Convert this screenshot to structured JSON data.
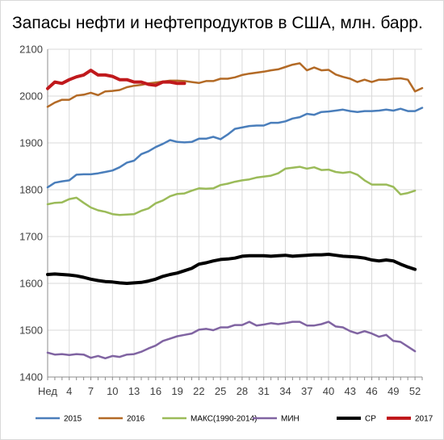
{
  "chart_data": {
    "type": "line",
    "title": "Запасы нефти и нефтепродуктов в США, млн. барр.",
    "xlabel": "",
    "ylabel": "",
    "ylim": [
      1400,
      2100
    ],
    "yticks": [
      1400,
      1500,
      1600,
      1700,
      1800,
      1900,
      2000,
      2100
    ],
    "xlim": [
      1,
      53
    ],
    "xtick_positions": [
      1,
      4,
      7,
      10,
      13,
      16,
      19,
      22,
      25,
      28,
      31,
      34,
      37,
      40,
      43,
      46,
      49,
      52
    ],
    "xtick_labels": [
      "Нед",
      "4",
      "7",
      "10",
      "13",
      "16",
      "19",
      "22",
      "25",
      "28",
      "31",
      "34",
      "37",
      "40",
      "43",
      "46",
      "49",
      "52"
    ],
    "grid": true,
    "legend_position": "bottom",
    "series": [
      {
        "name": "2015",
        "color": "#4a7ebb",
        "stroke_width": 2.5,
        "x": [
          1,
          2,
          3,
          4,
          5,
          6,
          7,
          8,
          9,
          10,
          11,
          12,
          13,
          14,
          15,
          16,
          17,
          18,
          19,
          20,
          21,
          22,
          23,
          24,
          25,
          26,
          27,
          28,
          29,
          30,
          31,
          32,
          33,
          34,
          35,
          36,
          37,
          38,
          39,
          40,
          41,
          42,
          43,
          44,
          45,
          46,
          47,
          48,
          49,
          50,
          51,
          52,
          53
        ],
        "values": [
          1805,
          1815,
          1818,
          1820,
          1832,
          1833,
          1833,
          1835,
          1838,
          1841,
          1848,
          1858,
          1862,
          1876,
          1882,
          1891,
          1898,
          1906,
          1902,
          1901,
          1902,
          1909,
          1909,
          1913,
          1908,
          1918,
          1930,
          1933,
          1936,
          1937,
          1937,
          1943,
          1943,
          1946,
          1952,
          1955,
          1962,
          1960,
          1966,
          1967,
          1969,
          1971,
          1968,
          1966,
          1968,
          1968,
          1969,
          1971,
          1969,
          1973,
          1968,
          1968,
          1975
        ]
      },
      {
        "name": "2016",
        "color": "#b36a26",
        "stroke_width": 2.5,
        "x": [
          1,
          2,
          3,
          4,
          5,
          6,
          7,
          8,
          9,
          10,
          11,
          12,
          13,
          14,
          15,
          16,
          17,
          18,
          19,
          20,
          21,
          22,
          23,
          24,
          25,
          26,
          27,
          28,
          29,
          30,
          31,
          32,
          33,
          34,
          35,
          36,
          37,
          38,
          39,
          40,
          41,
          42,
          43,
          44,
          45,
          46,
          47,
          48,
          49,
          50,
          51,
          52,
          53
        ],
        "values": [
          1977,
          1986,
          1992,
          1992,
          2001,
          2003,
          2007,
          2002,
          2010,
          2011,
          2013,
          2019,
          2022,
          2024,
          2027,
          2029,
          2031,
          2033,
          2033,
          2032,
          2030,
          2028,
          2032,
          2032,
          2037,
          2037,
          2040,
          2045,
          2048,
          2050,
          2052,
          2055,
          2057,
          2062,
          2067,
          2070,
          2055,
          2061,
          2055,
          2056,
          2046,
          2041,
          2037,
          2030,
          2035,
          2030,
          2035,
          2035,
          2037,
          2038,
          2035,
          2010,
          2017
        ]
      },
      {
        "name": "МАКС(1990-2014)",
        "color": "#9bbb59",
        "stroke_width": 2.5,
        "x": [
          1,
          2,
          3,
          4,
          5,
          6,
          7,
          8,
          9,
          10,
          11,
          12,
          13,
          14,
          15,
          16,
          17,
          18,
          19,
          20,
          21,
          22,
          23,
          24,
          25,
          26,
          27,
          28,
          29,
          30,
          31,
          32,
          33,
          34,
          35,
          36,
          37,
          38,
          39,
          40,
          41,
          42,
          43,
          44,
          45,
          46,
          47,
          48,
          49,
          50,
          51,
          52
        ],
        "values": [
          1769,
          1772,
          1773,
          1780,
          1783,
          1772,
          1762,
          1756,
          1753,
          1748,
          1746,
          1747,
          1748,
          1755,
          1760,
          1771,
          1777,
          1786,
          1791,
          1792,
          1798,
          1803,
          1802,
          1803,
          1810,
          1813,
          1817,
          1820,
          1822,
          1826,
          1828,
          1830,
          1835,
          1845,
          1847,
          1849,
          1845,
          1848,
          1842,
          1843,
          1838,
          1836,
          1838,
          1832,
          1820,
          1811,
          1811,
          1811,
          1806,
          1790,
          1793,
          1798
        ]
      },
      {
        "name": "МИН",
        "color": "#8064a2",
        "stroke_width": 2.5,
        "x": [
          1,
          2,
          3,
          4,
          5,
          6,
          7,
          8,
          9,
          10,
          11,
          12,
          13,
          14,
          15,
          16,
          17,
          18,
          19,
          20,
          21,
          22,
          23,
          24,
          25,
          26,
          27,
          28,
          29,
          30,
          31,
          32,
          33,
          34,
          35,
          36,
          37,
          38,
          39,
          40,
          41,
          42,
          43,
          44,
          45,
          46,
          47,
          48,
          49,
          50,
          51,
          52
        ],
        "values": [
          1452,
          1448,
          1449,
          1447,
          1449,
          1448,
          1441,
          1445,
          1440,
          1445,
          1443,
          1448,
          1449,
          1454,
          1461,
          1467,
          1477,
          1482,
          1487,
          1490,
          1493,
          1501,
          1503,
          1500,
          1506,
          1506,
          1511,
          1511,
          1518,
          1510,
          1512,
          1515,
          1513,
          1515,
          1518,
          1518,
          1510,
          1510,
          1513,
          1518,
          1508,
          1506,
          1498,
          1493,
          1498,
          1493,
          1486,
          1490,
          1477,
          1475,
          1465,
          1455
        ]
      },
      {
        "name": "СР",
        "color": "#000000",
        "stroke_width": 4,
        "x": [
          1,
          2,
          3,
          4,
          5,
          6,
          7,
          8,
          9,
          10,
          11,
          12,
          13,
          14,
          15,
          16,
          17,
          18,
          19,
          20,
          21,
          22,
          23,
          24,
          25,
          26,
          27,
          28,
          29,
          30,
          31,
          32,
          33,
          34,
          35,
          36,
          37,
          38,
          39,
          40,
          41,
          42,
          43,
          44,
          45,
          46,
          47,
          48,
          49,
          50,
          51,
          52
        ],
        "values": [
          1619,
          1620,
          1619,
          1618,
          1616,
          1613,
          1609,
          1606,
          1604,
          1603,
          1601,
          1600,
          1601,
          1602,
          1605,
          1609,
          1615,
          1619,
          1622,
          1627,
          1632,
          1641,
          1644,
          1648,
          1651,
          1652,
          1654,
          1658,
          1659,
          1659,
          1659,
          1658,
          1659,
          1660,
          1658,
          1659,
          1660,
          1661,
          1661,
          1662,
          1660,
          1658,
          1657,
          1656,
          1654,
          1650,
          1648,
          1650,
          1648,
          1641,
          1635,
          1630
        ]
      },
      {
        "name": "2017",
        "color": "#c0191c",
        "stroke_width": 4,
        "x": [
          1,
          2,
          3,
          4,
          5,
          6,
          7,
          8,
          9,
          10,
          11,
          12,
          13,
          14,
          15,
          16,
          17,
          18,
          19,
          20
        ],
        "values": [
          2016,
          2030,
          2027,
          2035,
          2041,
          2045,
          2055,
          2045,
          2045,
          2042,
          2035,
          2035,
          2030,
          2030,
          2025,
          2023,
          2030,
          2030,
          2027,
          2027
        ]
      }
    ]
  }
}
